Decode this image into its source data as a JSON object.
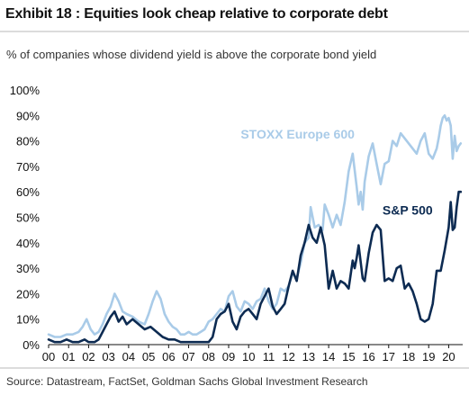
{
  "header": {
    "title": "Exhibit 18 : Equities look cheap relative to corporate debt",
    "subtitle": "% of companies whose dividend yield is above the corporate bond yield"
  },
  "footer": {
    "source": "Source: Datastream, FactSet, Goldman Sachs Global Investment Research"
  },
  "chart_data": {
    "type": "line",
    "title": "Exhibit 18 : Equities look cheap relative to corporate debt",
    "subtitle": "% of companies whose dividend yield is above the corporate bond yield",
    "xlabel": "",
    "ylabel": "",
    "ylim": [
      0,
      100
    ],
    "xlim": [
      2000,
      2020.7
    ],
    "y_ticks": [
      "0%",
      "10%",
      "20%",
      "30%",
      "40%",
      "50%",
      "60%",
      "70%",
      "80%",
      "90%",
      "100%"
    ],
    "x_ticks": [
      "00",
      "01",
      "02",
      "03",
      "04",
      "05",
      "06",
      "07",
      "08",
      "09",
      "10",
      "11",
      "12",
      "13",
      "14",
      "15",
      "16",
      "17",
      "18",
      "19",
      "20"
    ],
    "grid": false,
    "legend": "inline labels",
    "series": [
      {
        "name": "STOXX Europe 600",
        "color": "#a9cbe8",
        "points": [
          [
            2000.0,
            4
          ],
          [
            2000.3,
            3
          ],
          [
            2000.6,
            3
          ],
          [
            2000.9,
            4
          ],
          [
            2001.2,
            4
          ],
          [
            2001.5,
            5
          ],
          [
            2001.7,
            7
          ],
          [
            2001.9,
            10
          ],
          [
            2002.1,
            6
          ],
          [
            2002.3,
            4
          ],
          [
            2002.5,
            5
          ],
          [
            2002.7,
            8
          ],
          [
            2002.9,
            12
          ],
          [
            2003.1,
            15
          ],
          [
            2003.3,
            20
          ],
          [
            2003.5,
            17
          ],
          [
            2003.7,
            13
          ],
          [
            2003.9,
            12
          ],
          [
            2004.2,
            11
          ],
          [
            2004.5,
            9
          ],
          [
            2004.8,
            8
          ],
          [
            2005.0,
            12
          ],
          [
            2005.2,
            17
          ],
          [
            2005.4,
            21
          ],
          [
            2005.6,
            18
          ],
          [
            2005.8,
            12
          ],
          [
            2006.0,
            9
          ],
          [
            2006.2,
            7
          ],
          [
            2006.4,
            6
          ],
          [
            2006.6,
            4
          ],
          [
            2006.8,
            4
          ],
          [
            2007.0,
            5
          ],
          [
            2007.2,
            4
          ],
          [
            2007.4,
            4
          ],
          [
            2007.6,
            5
          ],
          [
            2007.8,
            6
          ],
          [
            2008.0,
            9
          ],
          [
            2008.2,
            10
          ],
          [
            2008.4,
            12
          ],
          [
            2008.6,
            14
          ],
          [
            2008.8,
            13
          ],
          [
            2009.0,
            19
          ],
          [
            2009.2,
            21
          ],
          [
            2009.4,
            15
          ],
          [
            2009.6,
            13
          ],
          [
            2009.8,
            17
          ],
          [
            2010.0,
            16
          ],
          [
            2010.2,
            14
          ],
          [
            2010.4,
            17
          ],
          [
            2010.6,
            18
          ],
          [
            2010.8,
            22
          ],
          [
            2011.0,
            17
          ],
          [
            2011.2,
            14
          ],
          [
            2011.4,
            16
          ],
          [
            2011.6,
            22
          ],
          [
            2011.8,
            21
          ],
          [
            2012.0,
            23
          ],
          [
            2012.2,
            28
          ],
          [
            2012.4,
            26
          ],
          [
            2012.6,
            32
          ],
          [
            2012.8,
            40
          ],
          [
            2013.0,
            42
          ],
          [
            2013.1,
            54
          ],
          [
            2013.3,
            46
          ],
          [
            2013.5,
            47
          ],
          [
            2013.7,
            45
          ],
          [
            2013.8,
            55
          ],
          [
            2014.0,
            51
          ],
          [
            2014.2,
            46
          ],
          [
            2014.4,
            51
          ],
          [
            2014.6,
            47
          ],
          [
            2014.8,
            56
          ],
          [
            2015.0,
            68
          ],
          [
            2015.2,
            75
          ],
          [
            2015.4,
            62
          ],
          [
            2015.5,
            55
          ],
          [
            2015.6,
            60
          ],
          [
            2015.7,
            53
          ],
          [
            2015.8,
            64
          ],
          [
            2016.0,
            74
          ],
          [
            2016.2,
            79
          ],
          [
            2016.4,
            71
          ],
          [
            2016.6,
            63
          ],
          [
            2016.8,
            71
          ],
          [
            2017.0,
            72
          ],
          [
            2017.2,
            80
          ],
          [
            2017.4,
            78
          ],
          [
            2017.6,
            83
          ],
          [
            2017.8,
            81
          ],
          [
            2018.0,
            79
          ],
          [
            2018.2,
            77
          ],
          [
            2018.4,
            75
          ],
          [
            2018.6,
            80
          ],
          [
            2018.8,
            83
          ],
          [
            2019.0,
            75
          ],
          [
            2019.2,
            73
          ],
          [
            2019.4,
            77
          ],
          [
            2019.5,
            81
          ],
          [
            2019.6,
            86
          ],
          [
            2019.7,
            89
          ],
          [
            2019.8,
            90
          ],
          [
            2019.9,
            88
          ],
          [
            2020.0,
            89
          ],
          [
            2020.1,
            86
          ],
          [
            2020.2,
            73
          ],
          [
            2020.3,
            82
          ],
          [
            2020.4,
            76
          ],
          [
            2020.5,
            78
          ],
          [
            2020.6,
            79
          ]
        ]
      },
      {
        "name": "S&P 500",
        "color": "#0d2b52",
        "points": [
          [
            2000.0,
            2
          ],
          [
            2000.3,
            1
          ],
          [
            2000.6,
            1
          ],
          [
            2000.9,
            2
          ],
          [
            2001.2,
            1
          ],
          [
            2001.5,
            1
          ],
          [
            2001.8,
            2
          ],
          [
            2002.0,
            1
          ],
          [
            2002.3,
            1
          ],
          [
            2002.5,
            2
          ],
          [
            2002.7,
            5
          ],
          [
            2002.9,
            8
          ],
          [
            2003.1,
            11
          ],
          [
            2003.3,
            13
          ],
          [
            2003.5,
            9
          ],
          [
            2003.7,
            11
          ],
          [
            2003.9,
            8
          ],
          [
            2004.2,
            10
          ],
          [
            2004.5,
            8
          ],
          [
            2004.8,
            6
          ],
          [
            2005.1,
            7
          ],
          [
            2005.4,
            5
          ],
          [
            2005.7,
            3
          ],
          [
            2006.0,
            2
          ],
          [
            2006.3,
            2
          ],
          [
            2006.6,
            1
          ],
          [
            2006.9,
            1
          ],
          [
            2007.2,
            1
          ],
          [
            2007.5,
            1
          ],
          [
            2007.8,
            1
          ],
          [
            2008.0,
            1
          ],
          [
            2008.2,
            3
          ],
          [
            2008.4,
            10
          ],
          [
            2008.6,
            12
          ],
          [
            2008.8,
            13
          ],
          [
            2009.0,
            16
          ],
          [
            2009.2,
            9
          ],
          [
            2009.4,
            6
          ],
          [
            2009.6,
            11
          ],
          [
            2009.8,
            13
          ],
          [
            2010.0,
            14
          ],
          [
            2010.2,
            12
          ],
          [
            2010.4,
            10
          ],
          [
            2010.6,
            16
          ],
          [
            2010.8,
            19
          ],
          [
            2011.0,
            22
          ],
          [
            2011.2,
            15
          ],
          [
            2011.4,
            12
          ],
          [
            2011.6,
            14
          ],
          [
            2011.8,
            16
          ],
          [
            2012.0,
            23
          ],
          [
            2012.2,
            29
          ],
          [
            2012.4,
            25
          ],
          [
            2012.6,
            35
          ],
          [
            2012.8,
            40
          ],
          [
            2013.0,
            47
          ],
          [
            2013.2,
            42
          ],
          [
            2013.4,
            40
          ],
          [
            2013.6,
            46
          ],
          [
            2013.8,
            39
          ],
          [
            2014.0,
            22
          ],
          [
            2014.2,
            29
          ],
          [
            2014.4,
            22
          ],
          [
            2014.6,
            25
          ],
          [
            2014.8,
            24
          ],
          [
            2015.0,
            22
          ],
          [
            2015.2,
            33
          ],
          [
            2015.3,
            30
          ],
          [
            2015.4,
            34
          ],
          [
            2015.5,
            39
          ],
          [
            2015.7,
            26
          ],
          [
            2015.8,
            25
          ],
          [
            2016.0,
            36
          ],
          [
            2016.2,
            44
          ],
          [
            2016.4,
            47
          ],
          [
            2016.6,
            45
          ],
          [
            2016.8,
            25
          ],
          [
            2017.0,
            26
          ],
          [
            2017.2,
            25
          ],
          [
            2017.4,
            30
          ],
          [
            2017.6,
            31
          ],
          [
            2017.8,
            22
          ],
          [
            2018.0,
            24
          ],
          [
            2018.2,
            21
          ],
          [
            2018.4,
            16
          ],
          [
            2018.6,
            10
          ],
          [
            2018.8,
            9
          ],
          [
            2019.0,
            10
          ],
          [
            2019.2,
            16
          ],
          [
            2019.4,
            29
          ],
          [
            2019.6,
            29
          ],
          [
            2019.8,
            37
          ],
          [
            2020.0,
            46
          ],
          [
            2020.1,
            56
          ],
          [
            2020.2,
            45
          ],
          [
            2020.3,
            46
          ],
          [
            2020.4,
            54
          ],
          [
            2020.5,
            60
          ],
          [
            2020.6,
            60
          ]
        ]
      }
    ]
  }
}
